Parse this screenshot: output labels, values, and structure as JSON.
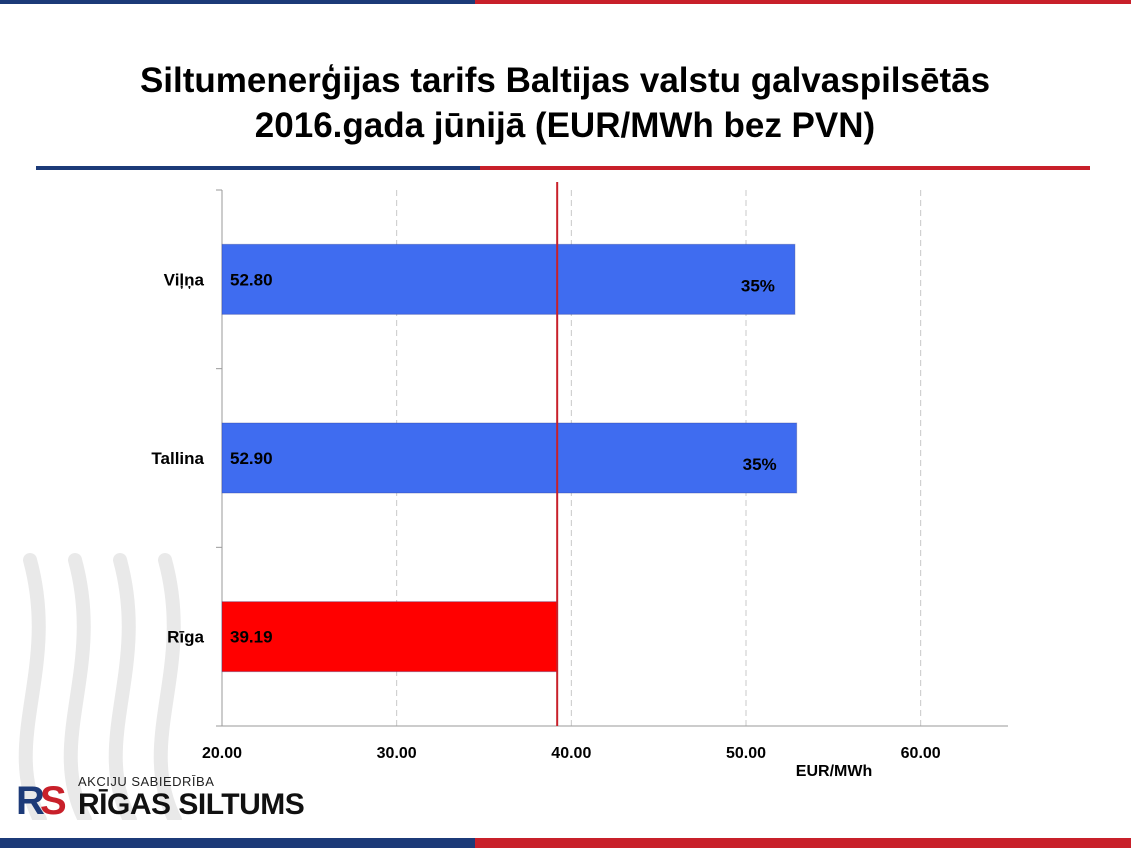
{
  "title_line1": "Siltumenerģijas tarifs Baltijas valstu galvaspilsētās",
  "title_line2": "2016.gada jūnijā (EUR/MWh bez PVN)",
  "logo": {
    "small_text": "AKCIJU SABIEDRĪBA",
    "big_text": "RĪGAS SILTUMS",
    "mark": "RS"
  },
  "colors": {
    "brand_blue": "#1c3a78",
    "brand_red": "#c8202a",
    "bar_blue": "#3f6cf0",
    "bar_red": "#ff0000",
    "ref_line": "#c8202a"
  },
  "chart_data": {
    "type": "bar",
    "orientation": "horizontal",
    "categories": [
      "Viļņa",
      "Tallina",
      "Rīga"
    ],
    "values": [
      52.8,
      52.9,
      39.19
    ],
    "value_labels": [
      "52.80",
      "52.90",
      "39.19"
    ],
    "percent_labels": [
      "35%",
      "35%",
      ""
    ],
    "bar_colors": [
      "#3f6cf0",
      "#3f6cf0",
      "#ff0000"
    ],
    "xlim": [
      20,
      65
    ],
    "xticks": [
      20,
      30,
      40,
      50,
      60
    ],
    "xtick_labels": [
      "20.00",
      "30.00",
      "40.00",
      "50.00",
      "60.00"
    ],
    "xlabel": "EUR/MWh",
    "reference_line": 39.19,
    "grid": "vertical dashed"
  }
}
